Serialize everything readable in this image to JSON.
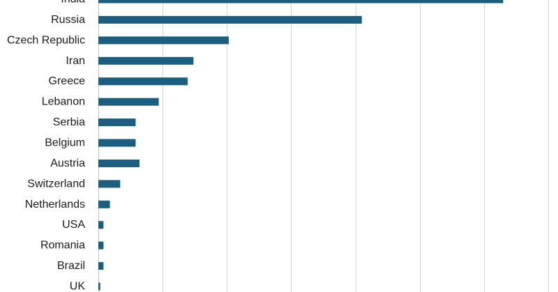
{
  "chart_data": {
    "type": "bar",
    "orientation": "horizontal",
    "categories": [
      "India",
      "Russia",
      "Czech Republic",
      "Iran",
      "Greece",
      "Lebanon",
      "Serbia",
      "Belgium",
      "Austria",
      "Switzerland",
      "Netherlands",
      "USA",
      "Romania",
      "Brazil",
      "UK"
    ],
    "values": [
      630,
      410,
      203,
      148,
      139,
      94,
      58,
      58,
      64,
      34,
      18,
      8,
      8,
      8,
      3
    ],
    "xlim": [
      0,
      700
    ],
    "grid_step": 100,
    "grid": true,
    "legend": "none",
    "bar_color": "#1b5e80",
    "title": "",
    "xlabel": "",
    "ylabel": ""
  }
}
